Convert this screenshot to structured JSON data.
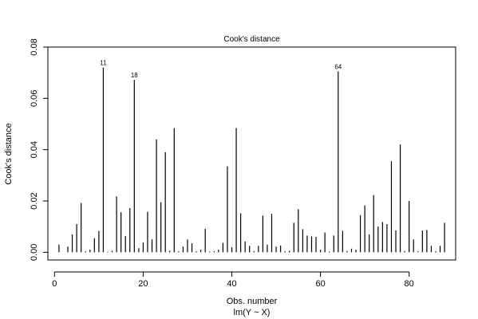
{
  "chart_data": {
    "type": "bar",
    "title": "Cook's distance",
    "xlabel": "Obs. number",
    "sub": "lm(Y ~ X)",
    "ylabel": "Cook's distance",
    "xlim": [
      -1.5,
      90.5
    ],
    "ylim": [
      -0.003,
      0.08
    ],
    "xticks": [
      0,
      20,
      40,
      60,
      80
    ],
    "yticks": [
      0.0,
      0.02,
      0.04,
      0.06,
      0.08
    ],
    "ytick_labels": [
      "0.00",
      "0.02",
      "0.04",
      "0.06",
      "0.08"
    ],
    "grid": false,
    "x": [
      1,
      2,
      3,
      4,
      5,
      6,
      7,
      8,
      9,
      10,
      11,
      12,
      13,
      14,
      15,
      16,
      17,
      18,
      19,
      20,
      21,
      22,
      23,
      24,
      25,
      26,
      27,
      28,
      29,
      30,
      31,
      32,
      33,
      34,
      35,
      36,
      37,
      38,
      39,
      40,
      41,
      42,
      43,
      44,
      45,
      46,
      47,
      48,
      49,
      50,
      51,
      52,
      53,
      54,
      55,
      56,
      57,
      58,
      59,
      60,
      61,
      62,
      63,
      64,
      65,
      66,
      67,
      68,
      69,
      70,
      71,
      72,
      73,
      74,
      75,
      76,
      77,
      78,
      79,
      80,
      81,
      82,
      83,
      84,
      85,
      86,
      87,
      88
    ],
    "values": [
      0.003,
      0.0,
      0.0022,
      0.007,
      0.011,
      0.0192,
      0.0004,
      0.001,
      0.0055,
      0.0083,
      0.072,
      0.0002,
      0.0006,
      0.0218,
      0.0156,
      0.0063,
      0.0172,
      0.0672,
      0.0016,
      0.0038,
      0.0158,
      0.005,
      0.044,
      0.0195,
      0.039,
      0.0006,
      0.0484,
      0.0004,
      0.0022,
      0.005,
      0.0035,
      0.0004,
      0.001,
      0.0092,
      0.0003,
      0.0004,
      0.001,
      0.0037,
      0.0335,
      0.002,
      0.0484,
      0.0152,
      0.0042,
      0.0025,
      0.0005,
      0.0025,
      0.0143,
      0.003,
      0.015,
      0.0022,
      0.0026,
      0.0004,
      0.0006,
      0.0115,
      0.0168,
      0.009,
      0.0065,
      0.0062,
      0.006,
      0.001,
      0.0077,
      0.0003,
      0.0065,
      0.0705,
      0.0084,
      0.0005,
      0.0014,
      0.001,
      0.0145,
      0.0183,
      0.007,
      0.0223,
      0.01,
      0.0118,
      0.011,
      0.0355,
      0.0085,
      0.042,
      0.0005,
      0.02,
      0.005,
      0.0004,
      0.0085,
      0.0087,
      0.0025,
      0.0004,
      0.0025,
      0.0115
    ],
    "annotations": [
      {
        "x": 11,
        "y": 0.072,
        "text": "11"
      },
      {
        "x": 18,
        "y": 0.0672,
        "text": "18"
      },
      {
        "x": 64,
        "y": 0.0705,
        "text": "64"
      }
    ]
  }
}
